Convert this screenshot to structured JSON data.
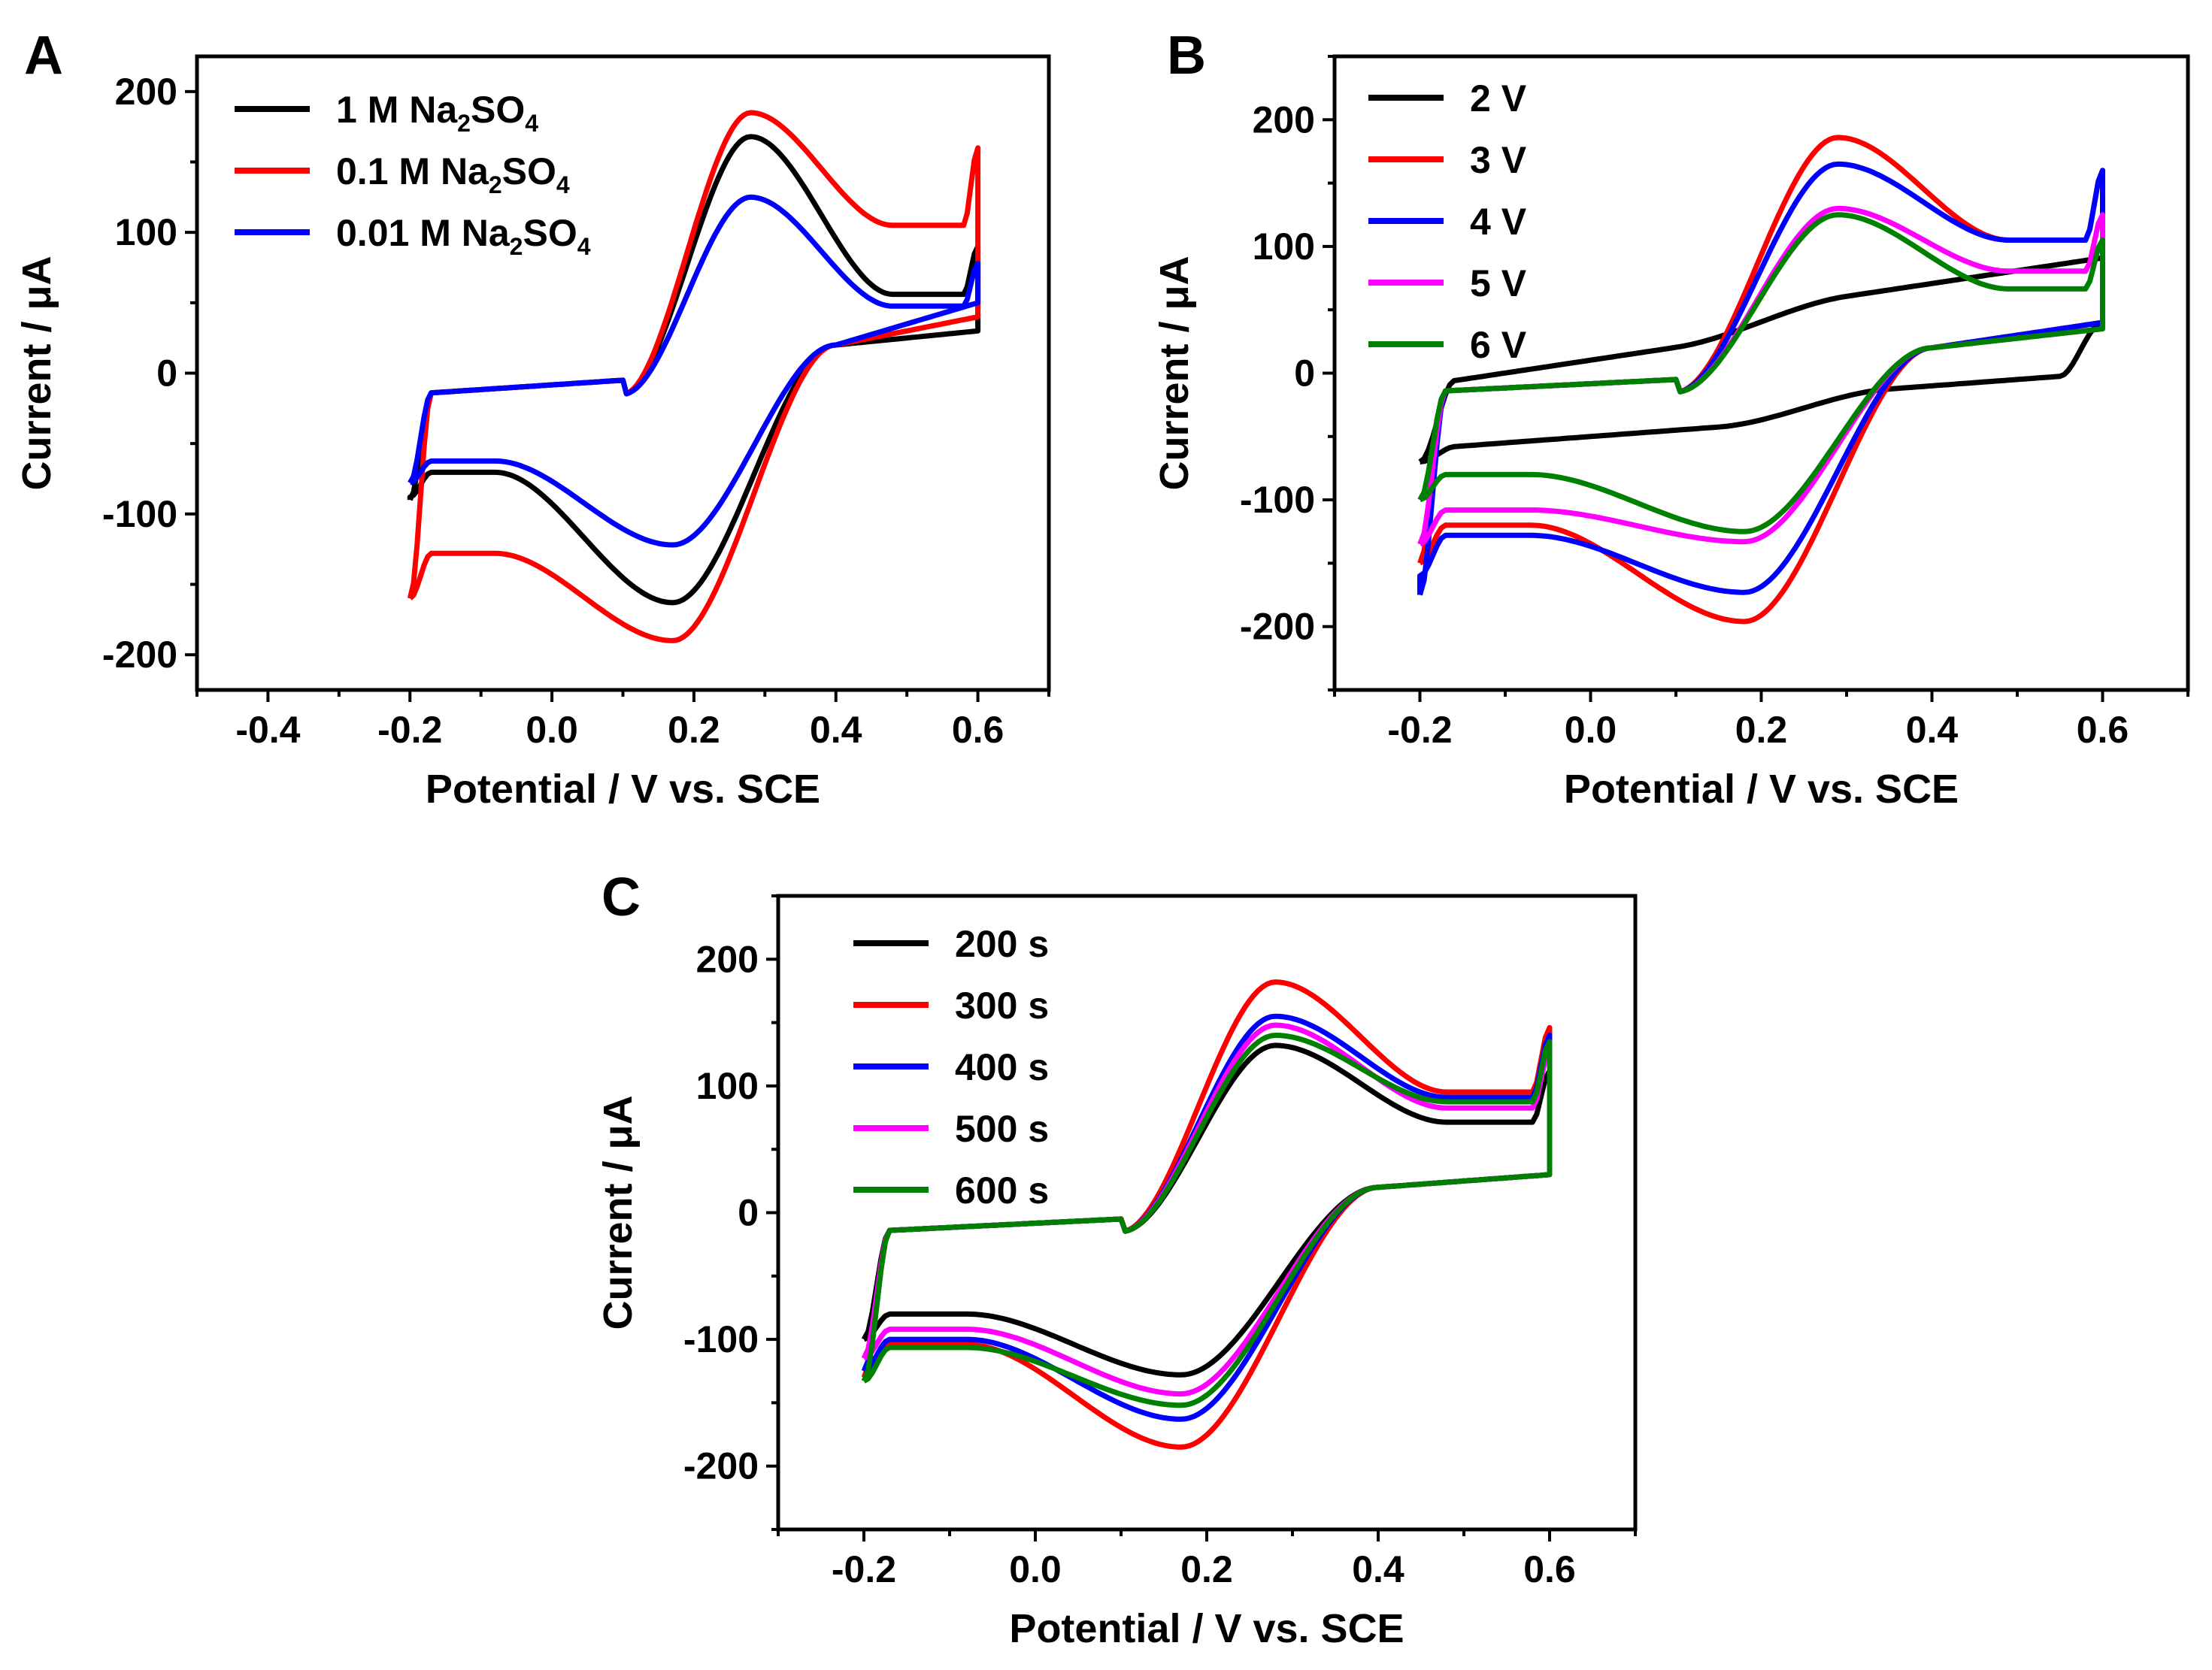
{
  "figure": {
    "panels": [
      "A",
      "B",
      "C"
    ]
  },
  "chart_data": [
    {
      "panel": "A",
      "type": "line",
      "subtype": "cyclic voltammogram",
      "xlabel": "Potential / V vs. SCE",
      "ylabel": "Current / μA",
      "xlim": [
        -0.5,
        0.7
      ],
      "ylim": [
        -225,
        225
      ],
      "xticks": [
        -0.4,
        -0.2,
        0.0,
        0.2,
        0.4,
        0.6
      ],
      "xtick_labels": [
        "-0.4",
        "-0.2",
        "0.0",
        "0.2",
        "0.4",
        "0.6"
      ],
      "yticks": [
        -200,
        -100,
        0,
        100,
        200
      ],
      "ytick_labels": [
        "-200",
        "-100",
        "0",
        "100",
        "200"
      ],
      "legend_position": "top-left",
      "series": [
        {
          "name": "1 M Na2SO4",
          "label_parts": [
            "1 M Na",
            "2",
            "SO",
            "4"
          ],
          "color": "#000000",
          "start": -0.2,
          "end": 0.6,
          "anodic_peak": {
            "x": 0.28,
            "y": 168
          },
          "cathodic_peak": {
            "x": 0.17,
            "y": -163
          },
          "current_at_start_fwd": -90,
          "current_at_end_fwd": 90,
          "current_at_end_rev": 30,
          "current_at_start_rev": -88
        },
        {
          "name": "0.1 M Na2SO4",
          "label_parts": [
            "0.1 M Na",
            "2",
            "SO",
            "4"
          ],
          "color": "#ff0000",
          "start": -0.2,
          "end": 0.6,
          "anodic_peak": {
            "x": 0.28,
            "y": 185
          },
          "cathodic_peak": {
            "x": 0.17,
            "y": -190
          },
          "current_at_start_fwd": -160,
          "current_at_end_fwd": 160,
          "current_at_end_rev": 40,
          "current_at_start_rev": -160
        },
        {
          "name": "0.01 M Na2SO4",
          "label_parts": [
            "0.01 M Na",
            "2",
            "SO",
            "4"
          ],
          "color": "#0000ff",
          "start": -0.2,
          "end": 0.6,
          "anodic_peak": {
            "x": 0.28,
            "y": 125
          },
          "cathodic_peak": {
            "x": 0.17,
            "y": -122
          },
          "current_at_start_fwd": -78,
          "current_at_end_fwd": 78,
          "current_at_end_rev": 50,
          "current_at_start_rev": -78
        }
      ]
    },
    {
      "panel": "B",
      "type": "line",
      "subtype": "cyclic voltammogram",
      "xlabel": "Potential / V vs. SCE",
      "ylabel": "Current / μA",
      "xlim": [
        -0.3,
        0.7
      ],
      "ylim": [
        -250,
        250
      ],
      "xticks": [
        -0.2,
        0.0,
        0.2,
        0.4,
        0.6
      ],
      "xtick_labels": [
        "-0.2",
        "0.0",
        "0.2",
        "0.4",
        "0.6"
      ],
      "yticks": [
        -200,
        -100,
        0,
        100,
        200
      ],
      "ytick_labels": [
        "-200",
        "-100",
        "0",
        "100",
        "200"
      ],
      "legend_position": "top-left",
      "series": [
        {
          "name": "2 V",
          "color": "#000000",
          "start": -0.2,
          "end": 0.6,
          "anodic_peak": {
            "x": 0.29,
            "y": 48
          },
          "cathodic_peak": {
            "x": 0.18,
            "y": -42
          },
          "current_at_start_fwd": -70,
          "current_at_end_fwd": 80,
          "current_at_end_rev": 40,
          "current_at_start_rev": -70,
          "flat": true
        },
        {
          "name": "3 V",
          "color": "#ff0000",
          "start": -0.2,
          "end": 0.6,
          "anodic_peak": {
            "x": 0.29,
            "y": 186
          },
          "cathodic_peak": {
            "x": 0.18,
            "y": -196
          },
          "current_at_start_fwd": -150,
          "current_at_end_fwd": 160,
          "current_at_end_rev": 40,
          "current_at_start_rev": -150
        },
        {
          "name": "4 V",
          "color": "#0000ff",
          "start": -0.2,
          "end": 0.6,
          "anodic_peak": {
            "x": 0.29,
            "y": 165
          },
          "cathodic_peak": {
            "x": 0.18,
            "y": -173
          },
          "current_at_start_fwd": -175,
          "current_at_end_fwd": 160,
          "current_at_end_rev": 40,
          "current_at_start_rev": -160
        },
        {
          "name": "5 V",
          "color": "#ff00ff",
          "start": -0.2,
          "end": 0.6,
          "anodic_peak": {
            "x": 0.29,
            "y": 130
          },
          "cathodic_peak": {
            "x": 0.18,
            "y": -133
          },
          "current_at_start_fwd": -135,
          "current_at_end_fwd": 125,
          "current_at_end_rev": 35,
          "current_at_start_rev": -135
        },
        {
          "name": "6 V",
          "color": "#008000",
          "start": -0.2,
          "end": 0.6,
          "anodic_peak": {
            "x": 0.29,
            "y": 125
          },
          "cathodic_peak": {
            "x": 0.18,
            "y": -125
          },
          "current_at_start_fwd": -100,
          "current_at_end_fwd": 105,
          "current_at_end_rev": 35,
          "current_at_start_rev": -100
        }
      ]
    },
    {
      "panel": "C",
      "type": "line",
      "subtype": "cyclic voltammogram",
      "xlabel": "Potential / V vs. SCE",
      "ylabel": "Current / μA",
      "xlim": [
        -0.3,
        0.7
      ],
      "ylim": [
        -250,
        250
      ],
      "xticks": [
        -0.2,
        0.0,
        0.2,
        0.4,
        0.6
      ],
      "xtick_labels": [
        "-0.2",
        "0.0",
        "0.2",
        "0.4",
        "0.6"
      ],
      "yticks": [
        -200,
        -100,
        0,
        100,
        200
      ],
      "ytick_labels": [
        "-200",
        "-100",
        "0",
        "100",
        "200"
      ],
      "legend_position": "top-left",
      "series": [
        {
          "name": "200 s",
          "color": "#000000",
          "start": -0.2,
          "end": 0.6,
          "anodic_peak": {
            "x": 0.28,
            "y": 132
          },
          "cathodic_peak": {
            "x": 0.17,
            "y": -128
          },
          "current_at_start_fwd": -100,
          "current_at_end_fwd": 112,
          "current_at_end_rev": 30,
          "current_at_start_rev": -100
        },
        {
          "name": "300 s",
          "color": "#ff0000",
          "start": -0.2,
          "end": 0.6,
          "anodic_peak": {
            "x": 0.28,
            "y": 182
          },
          "cathodic_peak": {
            "x": 0.17,
            "y": -185
          },
          "current_at_start_fwd": -130,
          "current_at_end_fwd": 146,
          "current_at_end_rev": 30,
          "current_at_start_rev": -130
        },
        {
          "name": "400 s",
          "color": "#0000ff",
          "start": -0.2,
          "end": 0.6,
          "anodic_peak": {
            "x": 0.28,
            "y": 155
          },
          "cathodic_peak": {
            "x": 0.17,
            "y": -163
          },
          "current_at_start_fwd": -125,
          "current_at_end_fwd": 140,
          "current_at_end_rev": 30,
          "current_at_start_rev": -125
        },
        {
          "name": "500 s",
          "color": "#ff00ff",
          "start": -0.2,
          "end": 0.6,
          "anodic_peak": {
            "x": 0.28,
            "y": 148
          },
          "cathodic_peak": {
            "x": 0.17,
            "y": -143
          },
          "current_at_start_fwd": -115,
          "current_at_end_fwd": 128,
          "current_at_end_rev": 30,
          "current_at_start_rev": -115
        },
        {
          "name": "600 s",
          "color": "#008000",
          "start": -0.2,
          "end": 0.6,
          "anodic_peak": {
            "x": 0.28,
            "y": 140
          },
          "cathodic_peak": {
            "x": 0.17,
            "y": -152
          },
          "current_at_start_fwd": -133,
          "current_at_end_fwd": 135,
          "current_at_end_rev": 30,
          "current_at_start_rev": -133
        }
      ]
    }
  ]
}
